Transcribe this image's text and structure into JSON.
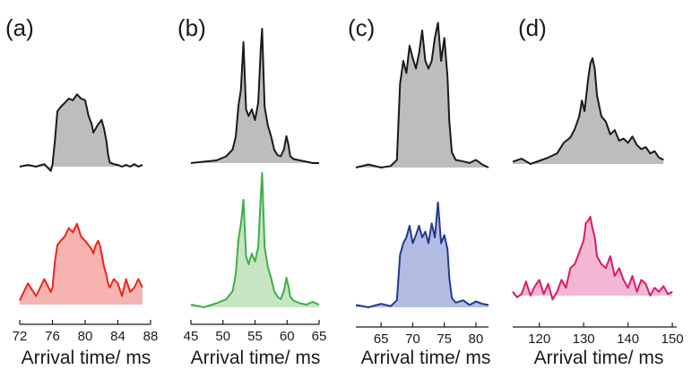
{
  "chart_data": [
    {
      "type": "area",
      "panel_label": "(a)",
      "xlabel": "Arrival time/ ms",
      "xlim": [
        72,
        88
      ],
      "xticks": [
        72,
        76,
        80,
        84,
        88
      ],
      "top": {
        "line_color": "#1a1a1a",
        "fill_color": "#bdbdbd",
        "x": [
          72.0,
          73.0,
          74.0,
          75.0,
          75.8,
          76.0,
          76.3,
          76.6,
          77.0,
          77.5,
          78.0,
          78.5,
          79.0,
          79.5,
          80.0,
          80.4,
          80.8,
          81.0,
          81.3,
          81.6,
          81.8,
          82.0,
          82.3,
          82.6,
          82.8,
          83.0,
          83.5,
          84.0,
          84.5,
          85.0,
          85.5,
          86.0,
          86.5,
          87.0
        ],
        "y": [
          0.0,
          0.02,
          0.0,
          0.03,
          -0.05,
          0.02,
          0.3,
          0.65,
          0.7,
          0.75,
          0.8,
          0.78,
          0.85,
          0.8,
          0.78,
          0.6,
          0.5,
          0.4,
          0.45,
          0.5,
          0.52,
          0.55,
          0.45,
          0.3,
          0.15,
          0.05,
          0.03,
          0.02,
          0.0,
          0.02,
          0.0,
          0.03,
          0.0,
          0.02
        ]
      },
      "bottom": {
        "line_color": "#e8261c",
        "fill_color": "#f7b3b0",
        "x": [
          72.0,
          73.0,
          74.0,
          75.0,
          75.8,
          76.0,
          76.3,
          76.6,
          77.0,
          77.5,
          78.0,
          78.5,
          79.0,
          79.5,
          80.0,
          80.4,
          80.8,
          81.0,
          81.3,
          81.6,
          81.8,
          82.0,
          82.3,
          82.6,
          82.8,
          83.0,
          83.5,
          84.0,
          84.5,
          85.0,
          85.5,
          86.0,
          86.5,
          87.0
        ],
        "y": [
          0.05,
          0.25,
          0.1,
          0.3,
          0.15,
          0.2,
          0.5,
          0.7,
          0.75,
          0.8,
          0.9,
          0.85,
          0.95,
          0.8,
          0.75,
          0.7,
          0.65,
          0.6,
          0.7,
          0.75,
          0.7,
          0.6,
          0.45,
          0.35,
          0.25,
          0.2,
          0.3,
          0.25,
          0.1,
          0.3,
          0.15,
          0.2,
          0.3,
          0.2
        ]
      }
    },
    {
      "type": "area",
      "panel_label": "(b)",
      "xlabel": "Arrival time/ ms",
      "xlim": [
        45,
        65
      ],
      "xticks": [
        45,
        50,
        55,
        60,
        65
      ],
      "top": {
        "line_color": "#1a1a1a",
        "fill_color": "#bdbdbd",
        "x": [
          45.0,
          47.0,
          49.0,
          50.5,
          51.5,
          52.0,
          52.4,
          52.8,
          53.2,
          53.6,
          54.0,
          54.5,
          55.0,
          55.5,
          55.9,
          56.1,
          56.5,
          57.0,
          57.5,
          58.0,
          58.5,
          59.0,
          59.5,
          59.9,
          60.2,
          60.5,
          61.0,
          62.0,
          63.0,
          64.0,
          65.0
        ],
        "y": [
          0.0,
          0.01,
          0.02,
          0.05,
          0.1,
          0.2,
          0.42,
          0.55,
          0.9,
          0.4,
          0.35,
          0.4,
          0.32,
          0.45,
          0.85,
          1.0,
          0.42,
          0.28,
          0.2,
          0.1,
          0.06,
          0.05,
          0.1,
          0.2,
          0.14,
          0.05,
          0.03,
          0.02,
          0.01,
          0.0,
          0.0
        ]
      },
      "bottom": {
        "line_color": "#3fae49",
        "fill_color": "#c6e6c3",
        "x": [
          45.0,
          47.0,
          49.0,
          50.5,
          51.5,
          52.0,
          52.4,
          52.8,
          53.2,
          53.6,
          54.0,
          54.5,
          55.0,
          55.5,
          55.9,
          56.1,
          56.5,
          57.0,
          57.5,
          58.0,
          58.5,
          59.0,
          59.5,
          59.9,
          60.2,
          60.5,
          61.0,
          62.0,
          63.0,
          64.0,
          65.0
        ],
        "y": [
          0.02,
          0.0,
          0.03,
          0.06,
          0.12,
          0.25,
          0.5,
          0.62,
          0.8,
          0.38,
          0.32,
          0.4,
          0.34,
          0.45,
          0.82,
          1.0,
          0.45,
          0.3,
          0.22,
          0.12,
          0.08,
          0.06,
          0.12,
          0.22,
          0.16,
          0.08,
          0.05,
          0.03,
          0.02,
          0.04,
          0.02
        ]
      }
    },
    {
      "type": "area",
      "panel_label": "(c)",
      "xlabel": "Arrival time/ ms",
      "xlim": [
        61,
        82
      ],
      "xticks": [
        65,
        70,
        75,
        80
      ],
      "top": {
        "line_color": "#1a1a1a",
        "fill_color": "#bdbdbd",
        "x": [
          61.0,
          63.0,
          65.0,
          66.5,
          67.5,
          68.0,
          68.5,
          69.0,
          69.5,
          70.0,
          70.5,
          71.0,
          71.5,
          72.0,
          72.5,
          73.0,
          73.5,
          74.0,
          74.5,
          75.0,
          75.5,
          75.8,
          76.2,
          76.8,
          78.0,
          79.0,
          80.0,
          81.0,
          82.0
        ],
        "y": [
          0.0,
          0.02,
          0.0,
          0.01,
          0.05,
          0.55,
          0.7,
          0.62,
          0.8,
          0.72,
          0.65,
          0.75,
          0.9,
          0.7,
          0.65,
          0.7,
          0.85,
          0.95,
          0.7,
          0.85,
          0.6,
          0.3,
          0.1,
          0.05,
          0.04,
          0.03,
          0.05,
          0.02,
          0.0
        ]
      },
      "bottom": {
        "line_color": "#23398f",
        "fill_color": "#b3bde3",
        "x": [
          61.0,
          63.0,
          65.0,
          66.5,
          67.5,
          68.0,
          68.5,
          69.0,
          69.5,
          70.0,
          70.5,
          71.0,
          71.5,
          72.0,
          72.5,
          73.0,
          73.5,
          74.0,
          74.5,
          75.0,
          75.5,
          75.8,
          76.2,
          76.8,
          78.0,
          79.0,
          80.0,
          81.0,
          82.0
        ],
        "y": [
          0.02,
          0.0,
          0.03,
          0.01,
          0.06,
          0.45,
          0.55,
          0.6,
          0.7,
          0.55,
          0.62,
          0.7,
          0.6,
          0.65,
          0.55,
          0.72,
          0.6,
          0.9,
          0.55,
          0.62,
          0.5,
          0.25,
          0.08,
          0.04,
          0.06,
          0.02,
          0.05,
          0.03,
          0.02
        ]
      }
    },
    {
      "type": "area",
      "panel_label": "(d)",
      "xlabel": "Arrival time/ ms",
      "xlim": [
        114,
        151
      ],
      "xticks": [
        120,
        130,
        140,
        150
      ],
      "top": {
        "line_color": "#1a1a1a",
        "fill_color": "#bdbdbd",
        "x": [
          114.0,
          116.0,
          118.0,
          120.0,
          122.0,
          124.0,
          125.5,
          127.0,
          128.0,
          129.0,
          129.6,
          130.2,
          131.0,
          131.5,
          132.0,
          132.5,
          133.0,
          134.0,
          135.0,
          136.0,
          137.0,
          138.0,
          139.0,
          140.0,
          141.0,
          142.0,
          143.0,
          144.0,
          145.0,
          146.0,
          147.0,
          148.0
        ],
        "y": [
          0.02,
          0.05,
          0.0,
          0.03,
          0.06,
          0.1,
          0.2,
          0.25,
          0.33,
          0.45,
          0.6,
          0.5,
          0.8,
          0.95,
          1.0,
          0.9,
          0.65,
          0.45,
          0.4,
          0.28,
          0.32,
          0.22,
          0.24,
          0.2,
          0.26,
          0.18,
          0.14,
          0.16,
          0.1,
          0.12,
          0.06,
          0.04
        ]
      },
      "bottom": {
        "line_color": "#d81b6a",
        "fill_color": "#f2b8d3",
        "x": [
          114.0,
          115.0,
          116.0,
          117.0,
          118.0,
          119.0,
          120.0,
          121.0,
          122.0,
          123.0,
          124.0,
          125.0,
          126.0,
          127.0,
          128.0,
          129.0,
          130.0,
          130.5,
          131.0,
          131.5,
          132.0,
          132.5,
          133.0,
          134.0,
          135.0,
          136.0,
          137.0,
          138.0,
          139.0,
          140.0,
          141.0,
          142.0,
          143.0,
          144.0,
          145.0,
          146.0,
          147.0,
          148.0,
          149.0,
          150.0
        ],
        "y": [
          0.05,
          -0.02,
          0.02,
          0.18,
          0.0,
          0.12,
          0.2,
          0.02,
          0.15,
          -0.05,
          0.05,
          0.2,
          0.1,
          0.35,
          0.4,
          0.55,
          0.7,
          0.92,
          0.95,
          1.0,
          0.85,
          0.75,
          0.5,
          0.4,
          0.35,
          0.5,
          0.25,
          0.35,
          0.2,
          0.1,
          0.25,
          0.05,
          0.2,
          0.15,
          0.0,
          0.1,
          0.05,
          0.12,
          0.02,
          0.05
        ]
      }
    }
  ]
}
